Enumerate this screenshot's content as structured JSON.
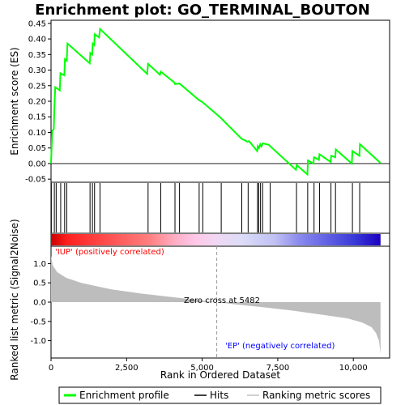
{
  "chart_data": {
    "title": "Enrichment plot: GO_TERMINAL_BOUTON",
    "top_panel": {
      "type": "line",
      "ylabel": "Enrichment score (ES)",
      "ylim": [
        -0.06,
        0.46
      ],
      "yticks": [
        -0.05,
        0.0,
        0.05,
        0.1,
        0.15,
        0.2,
        0.25,
        0.3,
        0.35,
        0.4,
        0.45
      ],
      "ytick_labels": [
        "-0.05",
        "0.00",
        "0.05",
        "0.10",
        "0.15",
        "0.20",
        "0.25",
        "0.30",
        "0.35",
        "0.40",
        "0.45"
      ],
      "series_name": "Enrichment profile",
      "color": "#00ff00",
      "points": [
        [
          0,
          0.0
        ],
        [
          40,
          0.105
        ],
        [
          90,
          0.11
        ],
        [
          110,
          0.175
        ],
        [
          140,
          0.245
        ],
        [
          290,
          0.235
        ],
        [
          310,
          0.29
        ],
        [
          440,
          0.283
        ],
        [
          460,
          0.335
        ],
        [
          520,
          0.33
        ],
        [
          545,
          0.385
        ],
        [
          1280,
          0.322
        ],
        [
          1300,
          0.355
        ],
        [
          1360,
          0.35
        ],
        [
          1380,
          0.385
        ],
        [
          1430,
          0.38
        ],
        [
          1445,
          0.415
        ],
        [
          1590,
          0.405
        ],
        [
          1620,
          0.432
        ],
        [
          3180,
          0.288
        ],
        [
          3210,
          0.32
        ],
        [
          3600,
          0.285
        ],
        [
          3630,
          0.295
        ],
        [
          4080,
          0.26
        ],
        [
          4100,
          0.255
        ],
        [
          4250,
          0.257
        ],
        [
          4900,
          0.203
        ],
        [
          5000,
          0.198
        ],
        [
          5600,
          0.148
        ],
        [
          6300,
          0.08
        ],
        [
          6500,
          0.07
        ],
        [
          6550,
          0.072
        ],
        [
          6820,
          0.04
        ],
        [
          6840,
          0.056
        ],
        [
          6880,
          0.05
        ],
        [
          6920,
          0.062
        ],
        [
          6960,
          0.055
        ],
        [
          7000,
          0.065
        ],
        [
          7200,
          0.06
        ],
        [
          8100,
          -0.02
        ],
        [
          8130,
          -0.005
        ],
        [
          8480,
          -0.035
        ],
        [
          8500,
          0.01
        ],
        [
          8680,
          0.0
        ],
        [
          8700,
          0.02
        ],
        [
          8860,
          0.012
        ],
        [
          8880,
          0.03
        ],
        [
          9250,
          0.005
        ],
        [
          9270,
          0.025
        ],
        [
          9400,
          0.02
        ],
        [
          9420,
          0.045
        ],
        [
          9950,
          0.0
        ],
        [
          9970,
          0.04
        ],
        [
          10200,
          0.025
        ],
        [
          10220,
          0.062
        ],
        [
          10900,
          0.002
        ]
      ]
    },
    "hits_panel": {
      "type": "rug",
      "positions": [
        10,
        110,
        170,
        320,
        450,
        520,
        1290,
        1370,
        1440,
        1620,
        3210,
        3630,
        4100,
        4250,
        4900,
        5020,
        5630,
        6310,
        6520,
        6830,
        6870,
        6930,
        7000,
        7250,
        8120,
        8490,
        8700,
        8880,
        9260,
        9410,
        9970,
        10210
      ]
    },
    "metric_panel": {
      "type": "area",
      "xlabel": "Rank in Ordered Dataset",
      "ylabel": "Ranked list metric (Signal2Noise)",
      "ylim": [
        -1.45,
        1.45
      ],
      "yticks": [
        -1.0,
        -0.5,
        0.0,
        0.5,
        1.0
      ],
      "ytick_labels": [
        "-1.0",
        "-0.5",
        "0.0",
        "0.5",
        "1.0"
      ],
      "xlim": [
        0,
        11200
      ],
      "xticks": [
        0,
        2500,
        5000,
        7500,
        10000
      ],
      "xtick_labels": [
        "0",
        "2,500",
        "5,000",
        "7,500",
        "10,000"
      ],
      "points": [
        [
          0,
          1.2
        ],
        [
          60,
          0.95
        ],
        [
          200,
          0.78
        ],
        [
          500,
          0.63
        ],
        [
          1000,
          0.5
        ],
        [
          2000,
          0.33
        ],
        [
          3000,
          0.22
        ],
        [
          4000,
          0.13
        ],
        [
          5000,
          0.04
        ],
        [
          5482,
          0.0
        ],
        [
          6000,
          -0.05
        ],
        [
          7000,
          -0.13
        ],
        [
          8000,
          -0.22
        ],
        [
          9000,
          -0.33
        ],
        [
          9800,
          -0.42
        ],
        [
          10300,
          -0.53
        ],
        [
          10600,
          -0.65
        ],
        [
          10750,
          -0.8
        ],
        [
          10850,
          -1.0
        ],
        [
          10900,
          -1.35
        ]
      ],
      "annotations": {
        "positive": "'IUP' (positively correlated)",
        "negative": "'EP' (negatively correlated)",
        "zero_cross": "Zero cross at 5482"
      },
      "zero_cross_rank": 5482
    },
    "legend": {
      "entries": [
        {
          "label": "Enrichment profile",
          "color": "#00ff00"
        },
        {
          "label": "Hits",
          "color": "#000000"
        },
        {
          "label": "Ranking metric scores",
          "color": "#c0c0c0"
        }
      ]
    },
    "colors": {
      "profile": "#00ff00",
      "positive_label": "#ff0000",
      "negative_label": "#0000ff",
      "metric_fill": "#bdbdbd"
    }
  }
}
